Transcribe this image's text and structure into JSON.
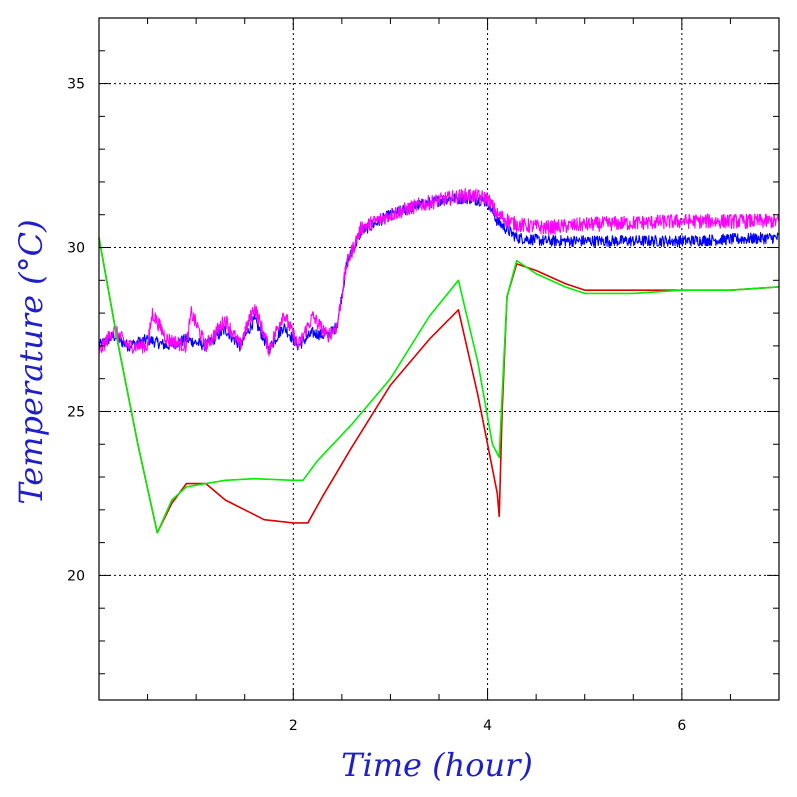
{
  "chart_data": {
    "type": "line",
    "xlabel": "Time (hour)",
    "ylabel": "Temperature (°C)",
    "xlim": [
      0,
      7
    ],
    "ylim": [
      16.2,
      37
    ],
    "x_ticks": [
      2,
      4,
      6
    ],
    "y_ticks": [
      20,
      25,
      30,
      35
    ],
    "grid": true,
    "series": [
      {
        "color": "#0000ff",
        "noise": 0.35,
        "points": [
          [
            0,
            27.0
          ],
          [
            0.15,
            27.3
          ],
          [
            0.3,
            27.0
          ],
          [
            0.5,
            27.2
          ],
          [
            0.7,
            27.0
          ],
          [
            0.9,
            27.2
          ],
          [
            1.1,
            27.0
          ],
          [
            1.3,
            27.5
          ],
          [
            1.45,
            27.0
          ],
          [
            1.6,
            27.8
          ],
          [
            1.75,
            26.9
          ],
          [
            1.9,
            27.6
          ],
          [
            2.05,
            27.0
          ],
          [
            2.2,
            27.4
          ],
          [
            2.35,
            27.3
          ],
          [
            2.45,
            27.6
          ],
          [
            2.55,
            29.5
          ],
          [
            2.7,
            30.5
          ],
          [
            3.0,
            31.0
          ],
          [
            3.3,
            31.3
          ],
          [
            3.6,
            31.5
          ],
          [
            3.8,
            31.5
          ],
          [
            4.0,
            31.4
          ],
          [
            4.1,
            30.8
          ],
          [
            4.3,
            30.3
          ],
          [
            4.6,
            30.2
          ],
          [
            5.0,
            30.2
          ],
          [
            6.0,
            30.2
          ],
          [
            7.0,
            30.3
          ]
        ]
      },
      {
        "color": "#ff00ff",
        "noise": 0.45,
        "points": [
          [
            0,
            26.8
          ],
          [
            0.15,
            27.5
          ],
          [
            0.3,
            27.0
          ],
          [
            0.5,
            27.0
          ],
          [
            0.55,
            28.0
          ],
          [
            0.7,
            27.2
          ],
          [
            0.9,
            27.0
          ],
          [
            0.95,
            28.0
          ],
          [
            1.1,
            27.0
          ],
          [
            1.3,
            27.8
          ],
          [
            1.45,
            27.0
          ],
          [
            1.6,
            28.2
          ],
          [
            1.75,
            26.9
          ],
          [
            1.9,
            28.0
          ],
          [
            2.05,
            27.0
          ],
          [
            2.2,
            27.9
          ],
          [
            2.35,
            27.3
          ],
          [
            2.45,
            27.6
          ],
          [
            2.55,
            29.5
          ],
          [
            2.7,
            30.6
          ],
          [
            3.0,
            31.0
          ],
          [
            3.3,
            31.3
          ],
          [
            3.6,
            31.5
          ],
          [
            3.8,
            31.6
          ],
          [
            4.0,
            31.5
          ],
          [
            4.1,
            31.0
          ],
          [
            4.3,
            30.7
          ],
          [
            4.6,
            30.6
          ],
          [
            5.0,
            30.7
          ],
          [
            6.0,
            30.8
          ],
          [
            7.0,
            30.8
          ]
        ]
      },
      {
        "color": "#dd0000",
        "noise": 0,
        "points": [
          [
            0,
            30.3
          ],
          [
            0.2,
            27.0
          ],
          [
            0.4,
            24.0
          ],
          [
            0.6,
            21.3
          ],
          [
            0.75,
            22.2
          ],
          [
            0.9,
            22.8
          ],
          [
            1.1,
            22.8
          ],
          [
            1.3,
            22.3
          ],
          [
            1.5,
            22.0
          ],
          [
            1.7,
            21.7
          ],
          [
            2.0,
            21.6
          ],
          [
            2.15,
            21.6
          ],
          [
            2.3,
            22.4
          ],
          [
            2.6,
            23.9
          ],
          [
            3.0,
            25.8
          ],
          [
            3.4,
            27.2
          ],
          [
            3.7,
            28.1
          ],
          [
            3.9,
            25.5
          ],
          [
            4.1,
            22.5
          ],
          [
            4.12,
            21.8
          ],
          [
            4.15,
            25.0
          ],
          [
            4.2,
            28.5
          ],
          [
            4.3,
            29.5
          ],
          [
            4.5,
            29.3
          ],
          [
            4.8,
            28.9
          ],
          [
            5.0,
            28.7
          ],
          [
            5.5,
            28.7
          ],
          [
            6.0,
            28.7
          ],
          [
            6.5,
            28.7
          ],
          [
            7.0,
            28.8
          ]
        ]
      },
      {
        "color": "#00ee00",
        "noise": 0,
        "points": [
          [
            0,
            30.3
          ],
          [
            0.2,
            27.0
          ],
          [
            0.4,
            24.0
          ],
          [
            0.6,
            21.3
          ],
          [
            0.75,
            22.3
          ],
          [
            0.9,
            22.7
          ],
          [
            1.1,
            22.8
          ],
          [
            1.3,
            22.9
          ],
          [
            1.6,
            22.95
          ],
          [
            2.0,
            22.9
          ],
          [
            2.1,
            22.9
          ],
          [
            2.25,
            23.5
          ],
          [
            2.6,
            24.6
          ],
          [
            3.0,
            26.0
          ],
          [
            3.4,
            27.9
          ],
          [
            3.7,
            29.0
          ],
          [
            3.9,
            26.5
          ],
          [
            4.05,
            24.0
          ],
          [
            4.12,
            23.6
          ],
          [
            4.15,
            25.5
          ],
          [
            4.2,
            28.5
          ],
          [
            4.3,
            29.6
          ],
          [
            4.5,
            29.2
          ],
          [
            4.8,
            28.8
          ],
          [
            5.0,
            28.6
          ],
          [
            5.5,
            28.6
          ],
          [
            6.0,
            28.7
          ],
          [
            6.5,
            28.7
          ],
          [
            7.0,
            28.8
          ]
        ]
      }
    ]
  }
}
